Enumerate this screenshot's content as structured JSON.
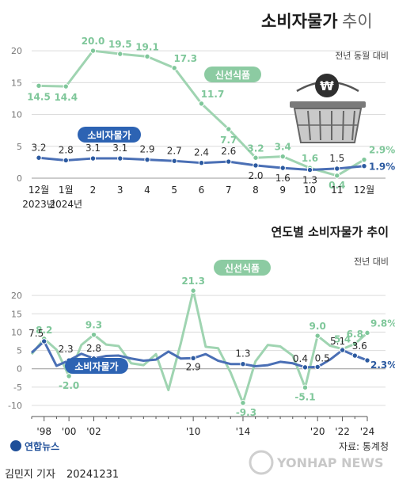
{
  "header": {
    "title_bold": "소비자물가",
    "title_light": "추이"
  },
  "top_chart": {
    "unit_label": "전년 동월 대비",
    "series_labels": {
      "fresh": "신선식품",
      "cpi": "소비자물가"
    }
  },
  "bottom_chart": {
    "title": "연도별 소비자물가 추이",
    "unit_label": "전년 대비",
    "series_labels": {
      "fresh": "신선식품",
      "cpi": "소비자물가"
    }
  },
  "footer": {
    "source": "자료: 통계청",
    "logo": "연합뉴스",
    "byline": "김민지 기자",
    "date": "20241231",
    "watermark": "YONHAP NEWS"
  },
  "colors": {
    "fresh": "#9fd4b1",
    "fresh_marker": "#7fc79a",
    "cpi": "#4a6fb5",
    "cpi_marker": "#2c5aa0",
    "label_bg_fresh": "#8ccba2",
    "label_bg_cpi": "#2d63b3"
  },
  "chart_data": [
    {
      "type": "line",
      "title": "소비자물가 추이",
      "ylabel": "전년 동월 대비",
      "ylim": [
        0,
        22
      ],
      "yticks": [
        0,
        5,
        10,
        15,
        20
      ],
      "categories": [
        "12월",
        "1월",
        "2",
        "3",
        "4",
        "5",
        "6",
        "7",
        "8",
        "9",
        "10",
        "11",
        "12월"
      ],
      "x_sublabels": [
        "2023년",
        "2024년",
        "",
        "",
        "",
        "",
        "",
        "",
        "",
        "",
        "",
        "",
        ""
      ],
      "series": [
        {
          "name": "신선식품",
          "values": [
            14.5,
            14.4,
            20.0,
            19.5,
            19.1,
            17.3,
            11.7,
            7.7,
            3.2,
            3.4,
            1.6,
            0.4,
            2.9
          ],
          "labels": [
            "14.5",
            "14.4",
            "20.0",
            "19.5",
            "19.1",
            "17.3",
            "11.7",
            "7.7",
            "3.2",
            "3.4",
            "1.6",
            "0.4",
            "2.9%"
          ]
        },
        {
          "name": "소비자물가",
          "values": [
            3.2,
            2.8,
            3.1,
            3.1,
            2.9,
            2.7,
            2.4,
            2.6,
            2.0,
            1.6,
            1.3,
            1.5,
            1.9
          ],
          "labels": [
            "3.2",
            "2.8",
            "3.1",
            "3.1",
            "2.9",
            "2.7",
            "2.4",
            "2.6",
            "2.0",
            "1.6",
            "1.3",
            "1.5",
            "1.9%"
          ]
        }
      ],
      "grid": true
    },
    {
      "type": "line",
      "title": "연도별 소비자물가 추이",
      "ylabel": "전년 대비",
      "ylim": [
        -10,
        25
      ],
      "yticks": [
        -10,
        -5,
        0,
        5,
        10,
        15,
        20
      ],
      "x": [
        1997,
        1998,
        1999,
        2000,
        2001,
        2002,
        2003,
        2004,
        2005,
        2006,
        2007,
        2008,
        2009,
        2010,
        2011,
        2012,
        2013,
        2014,
        2015,
        2016,
        2017,
        2018,
        2019,
        2020,
        2021,
        2022,
        2023,
        2024
      ],
      "xtick_labels": [
        {
          "x": 1998,
          "label": "'98"
        },
        {
          "x": 2000,
          "label": "'00"
        },
        {
          "x": 2002,
          "label": "'02"
        },
        {
          "x": 2010,
          "label": "'10"
        },
        {
          "x": 2014,
          "label": "'14"
        },
        {
          "x": 2020,
          "label": "'20"
        },
        {
          "x": 2022,
          "label": "'22"
        },
        {
          "x": 2024,
          "label": "'24"
        }
      ],
      "series": [
        {
          "name": "신선식품",
          "values": [
            4.0,
            8.2,
            5.2,
            -2.0,
            6.5,
            9.3,
            6.6,
            6.2,
            1.5,
            1.0,
            4.0,
            -5.8,
            7.0,
            21.3,
            6.0,
            5.6,
            -1.0,
            -9.3,
            2.0,
            6.5,
            6.1,
            3.6,
            -5.1,
            9.0,
            6.3,
            5.4,
            6.8,
            9.8
          ],
          "annotations": [
            {
              "x": 1998,
              "label": "8.2"
            },
            {
              "x": 2000,
              "label": "-2.0"
            },
            {
              "x": 2002,
              "label": "9.3"
            },
            {
              "x": 2010,
              "label": "21.3"
            },
            {
              "x": 2014,
              "label": "-9.3"
            },
            {
              "x": 2019,
              "label": "-5.1"
            },
            {
              "x": 2020,
              "label": "9.0"
            },
            {
              "x": 2022,
              "label": "5.4"
            },
            {
              "x": 2023,
              "label": "6.8"
            },
            {
              "x": 2024,
              "label": "9.8%"
            }
          ]
        },
        {
          "name": "소비자물가",
          "values": [
            4.4,
            7.5,
            0.8,
            2.3,
            4.1,
            2.8,
            3.5,
            3.6,
            2.8,
            2.2,
            2.5,
            4.7,
            2.8,
            2.9,
            4.0,
            2.2,
            1.3,
            1.3,
            0.7,
            1.0,
            1.9,
            1.5,
            0.4,
            0.5,
            2.5,
            5.1,
            3.6,
            2.3
          ],
          "annotations": [
            {
              "x": 1998,
              "label": "7.5"
            },
            {
              "x": 2000,
              "label": "2.3"
            },
            {
              "x": 2002,
              "label": "2.8"
            },
            {
              "x": 2010,
              "label": "2.9"
            },
            {
              "x": 2014,
              "label": "1.3"
            },
            {
              "x": 2019,
              "label": "0.4"
            },
            {
              "x": 2020,
              "label": "0.5"
            },
            {
              "x": 2022,
              "label": "5.1"
            },
            {
              "x": 2023,
              "label": "3.6"
            },
            {
              "x": 2024,
              "label": "2.3%"
            }
          ]
        }
      ],
      "grid": true
    }
  ]
}
